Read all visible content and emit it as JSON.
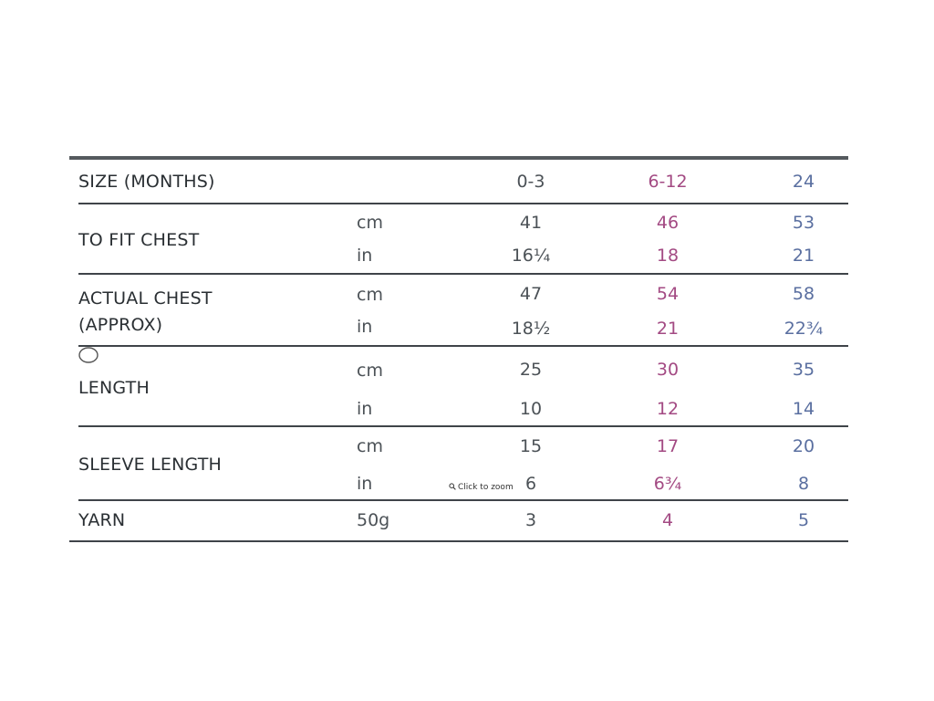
{
  "table": {
    "header": {
      "label": "SIZE (MONTHS)",
      "sizes": [
        "0-3",
        "6-12",
        "24"
      ]
    },
    "rows": [
      {
        "label": "TO FIT CHEST",
        "units": [
          "cm",
          "in"
        ],
        "values": [
          [
            "41",
            "46",
            "53"
          ],
          [
            "16¼",
            "18",
            "21"
          ]
        ]
      },
      {
        "label_lines": [
          "ACTUAL CHEST",
          "(APPROX)"
        ],
        "units": [
          "cm",
          "in"
        ],
        "values": [
          [
            "47",
            "54",
            "58"
          ],
          [
            "18½",
            "21",
            "22¾"
          ]
        ]
      },
      {
        "label": "LENGTH",
        "units": [
          "cm",
          "in"
        ],
        "values": [
          [
            "25",
            "30",
            "35"
          ],
          [
            "10",
            "12",
            "14"
          ]
        ]
      },
      {
        "label": "SLEEVE LENGTH",
        "units": [
          "cm",
          "in"
        ],
        "values": [
          [
            "15",
            "17",
            "20"
          ],
          [
            "6",
            "6¾",
            "8"
          ]
        ]
      },
      {
        "label": "YARN",
        "units": [
          "50g"
        ],
        "values": [
          [
            "3",
            "4",
            "5"
          ]
        ]
      }
    ]
  },
  "overlay": {
    "zoom_hint": "Click to zoom",
    "zoom_icon": "zoom-icon"
  },
  "colors": {
    "size_1": "#4c5257",
    "size_2": "#a34a83",
    "size_3": "#5a6fa0",
    "rule": "#3f4449"
  }
}
